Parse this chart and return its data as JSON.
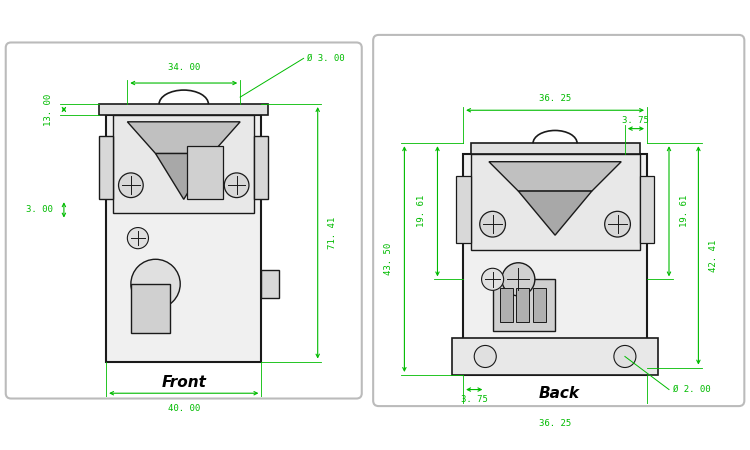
{
  "bg_color": "#ffffff",
  "panel_bg": "#ffffff",
  "panel_border": "#bbbbbb",
  "line_color": "#1a1a1a",
  "dim_color": "#00bb00",
  "label_front": "Front",
  "label_back": "Back",
  "front_dims": {
    "width_top": "34. 00",
    "height_right": "71. 41",
    "width_bottom": "40. 00",
    "offset_left": "13. 00",
    "offset_top": "3. 00",
    "hole_dia": "Ø 3. 00"
  },
  "back_dims": {
    "width_top_outer": "36. 25",
    "width_top_inner": "3. 75",
    "height_left_outer": "43. 50",
    "height_left_inner": "19. 61",
    "height_right_outer": "42. 41",
    "height_right_inner": "19. 61",
    "width_bot_inner": "3. 75",
    "width_bot_outer": "36. 25",
    "hole_dia": "Ø 2. 00"
  }
}
